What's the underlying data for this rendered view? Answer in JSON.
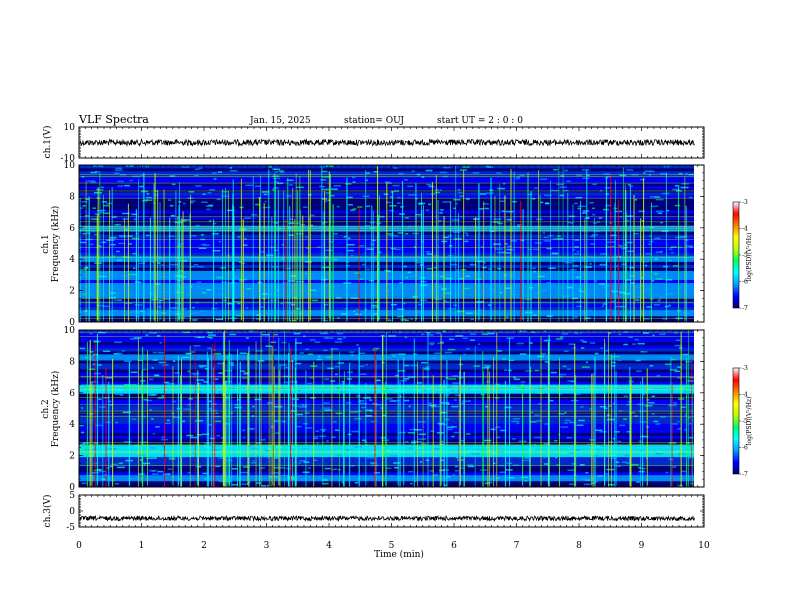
{
  "header": {
    "title": "VLF Spectra",
    "date": "Jan. 15, 2025",
    "station": "station= OUJ",
    "start_ut": "start  UT =   2 : 0  : 0"
  },
  "chart_data": [
    {
      "type": "line",
      "panel": "ch1-waveform",
      "ylabel": "ch.1(V)",
      "ylim": [
        -10,
        10
      ],
      "y_ticks": [
        "10",
        "-10"
      ],
      "mean_value": 0,
      "line_color": "#000000"
    },
    {
      "type": "heatmap",
      "panel": "ch1-spectrogram",
      "ylabel": "ch.1\nFrequency (kHz)",
      "ylabel_line1": "ch.1",
      "ylabel_line2": "Frequency (kHz)",
      "ylim": [
        0,
        10
      ],
      "y_ticks": [
        "0",
        "2",
        "4",
        "6",
        "8",
        "10"
      ],
      "colorbar": {
        "label": "log(PSD)(V²/Hz)",
        "range": [
          -7,
          -3
        ],
        "ticks": [
          "-3",
          "-4",
          "-5",
          "-6",
          "-7"
        ],
        "colors": [
          "#000070",
          "#0000ff",
          "#00a0ff",
          "#00ffff",
          "#00ff60",
          "#c0ff00",
          "#ffff00",
          "#ff8000",
          "#ff0000",
          "#ffffff"
        ]
      },
      "noise_bands_khz": [
        0.5,
        1.8,
        2.3,
        3.0,
        4.0,
        6.0
      ]
    },
    {
      "type": "heatmap",
      "panel": "ch2-spectrogram",
      "ylabel": "ch.2\nFrequency (kHz)",
      "ylabel_line1": "ch.2",
      "ylabel_line2": "Frequency (kHz)",
      "ylim": [
        0,
        10
      ],
      "y_ticks": [
        "0",
        "2",
        "4",
        "6",
        "8",
        "10"
      ],
      "colorbar": {
        "label": "log(PSD)(V²/Hz)",
        "range": [
          -7,
          -3
        ],
        "ticks": [
          "-3",
          "-4",
          "-5",
          "-6",
          "-7"
        ],
        "colors": [
          "#000070",
          "#0000ff",
          "#00a0ff",
          "#00ffff",
          "#00ff60",
          "#c0ff00",
          "#ffff00",
          "#ff8000",
          "#ff0000",
          "#ffffff"
        ]
      },
      "noise_bands_khz": [
        0.6,
        2.2,
        2.5,
        6.3,
        8.3
      ]
    },
    {
      "type": "line",
      "panel": "ch3-waveform",
      "ylabel": "ch.3(V)",
      "ylim": [
        -5,
        5
      ],
      "y_ticks": [
        "5",
        "0",
        "-5"
      ],
      "mean_value": -2.3,
      "line_color": "#000000"
    }
  ],
  "x_axis": {
    "label": "Time  (min)",
    "xlim": [
      0,
      10
    ],
    "data_end": 9.84,
    "ticks": [
      "0",
      "1",
      "2",
      "3",
      "4",
      "5",
      "6",
      "7",
      "8",
      "9",
      "10"
    ]
  }
}
